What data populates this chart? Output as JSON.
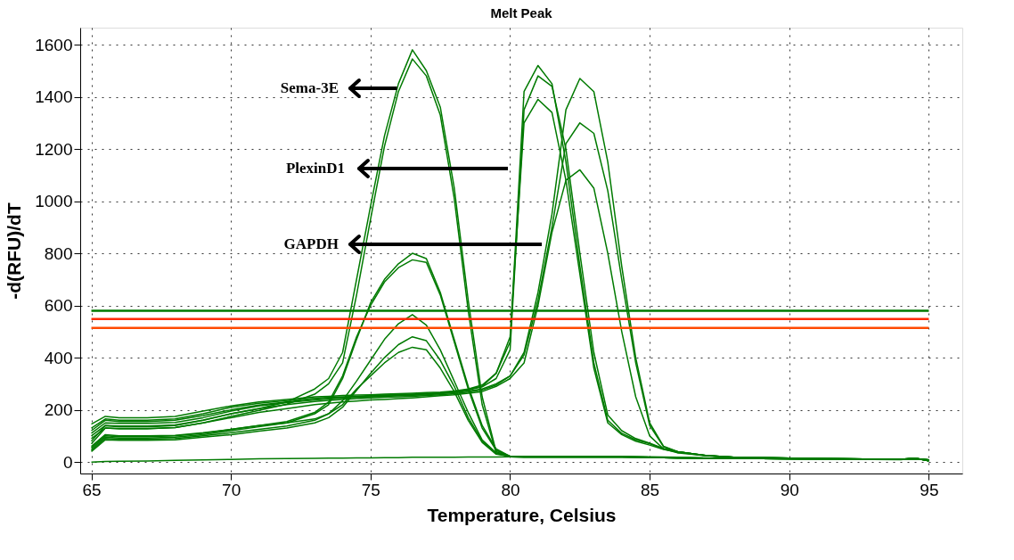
{
  "chart_data": {
    "type": "line",
    "title": "Melt Peak",
    "xlabel": "Temperature, Celsius",
    "ylabel": "-d(RFU)/dT",
    "x": [
      65,
      65.5,
      66,
      67,
      68,
      69,
      70,
      71,
      72,
      73,
      73.5,
      74,
      74.5,
      75,
      75.5,
      76,
      76.5,
      77,
      77.5,
      78,
      78.5,
      79,
      79.5,
      80,
      80.5,
      81,
      81.5,
      82,
      82.5,
      83,
      83.5,
      84,
      84.5,
      85,
      85.5,
      86,
      87,
      88,
      90,
      92,
      94,
      94.5,
      95
    ],
    "series": [
      {
        "color": "#007a00",
        "values": [
          80,
          140,
          135,
          135,
          140,
          160,
          185,
          205,
          230,
          280,
          320,
          420,
          700,
          980,
          1250,
          1450,
          1580,
          1500,
          1360,
          1050,
          620,
          250,
          40,
          20,
          18,
          18,
          18,
          18,
          18,
          18,
          18,
          18,
          18,
          17,
          17,
          16,
          15,
          14,
          12,
          11,
          10,
          12,
          8
        ]
      },
      {
        "color": "#007a00",
        "values": [
          70,
          130,
          128,
          128,
          132,
          150,
          175,
          198,
          222,
          260,
          300,
          380,
          640,
          930,
          1210,
          1420,
          1545,
          1480,
          1330,
          1010,
          580,
          220,
          35,
          20,
          18,
          18,
          18,
          18,
          18,
          18,
          18,
          18,
          18,
          17,
          17,
          16,
          15,
          14,
          12,
          11,
          10,
          12,
          8
        ]
      },
      {
        "color": "#007a00",
        "values": [
          50,
          95,
          92,
          92,
          95,
          105,
          120,
          135,
          150,
          185,
          220,
          320,
          470,
          610,
          700,
          760,
          800,
          780,
          650,
          470,
          290,
          140,
          50,
          22,
          20,
          20,
          20,
          20,
          20,
          20,
          20,
          20,
          19,
          18,
          17,
          16,
          15,
          14,
          12,
          11,
          10,
          12,
          8
        ]
      },
      {
        "color": "#007a00",
        "values": [
          55,
          100,
          97,
          97,
          100,
          110,
          125,
          140,
          155,
          190,
          230,
          330,
          480,
          600,
          690,
          745,
          775,
          765,
          640,
          460,
          280,
          130,
          45,
          22,
          20,
          20,
          20,
          20,
          20,
          20,
          20,
          20,
          19,
          18,
          17,
          16,
          15,
          14,
          12,
          11,
          10,
          12,
          8
        ]
      },
      {
        "color": "#007a00",
        "values": [
          45,
          90,
          88,
          88,
          90,
          100,
          112,
          125,
          138,
          160,
          185,
          235,
          310,
          390,
          470,
          530,
          565,
          525,
          430,
          310,
          190,
          85,
          35,
          22,
          20,
          20,
          20,
          20,
          20,
          20,
          20,
          20,
          19,
          18,
          17,
          16,
          15,
          14,
          12,
          11,
          10,
          12,
          8
        ]
      },
      {
        "color": "#007a00",
        "values": [
          40,
          85,
          83,
          83,
          85,
          95,
          105,
          118,
          130,
          150,
          170,
          210,
          275,
          340,
          400,
          450,
          480,
          465,
          390,
          290,
          170,
          80,
          32,
          22,
          20,
          20,
          20,
          20,
          20,
          20,
          20,
          20,
          19,
          18,
          17,
          16,
          15,
          14,
          12,
          11,
          10,
          12,
          8
        ]
      },
      {
        "color": "#007a00",
        "values": [
          60,
          105,
          100,
          100,
          102,
          112,
          125,
          140,
          150,
          165,
          185,
          220,
          280,
          330,
          380,
          420,
          440,
          430,
          360,
          270,
          160,
          75,
          30,
          22,
          20,
          20,
          20,
          20,
          20,
          20,
          20,
          20,
          19,
          18,
          17,
          16,
          15,
          14,
          12,
          11,
          10,
          12,
          8
        ]
      },
      {
        "color": "#007a00",
        "values": [
          130,
          165,
          160,
          160,
          165,
          185,
          210,
          225,
          235,
          245,
          248,
          250,
          252,
          255,
          257,
          258,
          260,
          262,
          265,
          270,
          278,
          290,
          340,
          460,
          1420,
          1520,
          1450,
          1150,
          750,
          380,
          160,
          110,
          85,
          70,
          50,
          40,
          25,
          18,
          15,
          12,
          10,
          15,
          5
        ]
      },
      {
        "color": "#007a00",
        "values": [
          145,
          175,
          170,
          170,
          175,
          195,
          215,
          230,
          240,
          250,
          252,
          255,
          257,
          258,
          260,
          262,
          264,
          266,
          268,
          272,
          280,
          295,
          340,
          480,
          1300,
          1390,
          1340,
          1080,
          720,
          360,
          150,
          105,
          80,
          65,
          48,
          38,
          24,
          18,
          15,
          12,
          10,
          15,
          5
        ]
      },
      {
        "color": "#007a00",
        "values": [
          120,
          160,
          155,
          155,
          160,
          178,
          200,
          218,
          230,
          240,
          244,
          247,
          250,
          252,
          255,
          256,
          258,
          260,
          263,
          268,
          276,
          288,
          320,
          430,
          1350,
          1480,
          1440,
          1200,
          800,
          420,
          180,
          120,
          90,
          72,
          52,
          40,
          25,
          18,
          15,
          12,
          10,
          15,
          5
        ]
      },
      {
        "color": "#007a00",
        "values": [
          110,
          150,
          148,
          148,
          152,
          170,
          195,
          215,
          228,
          238,
          242,
          245,
          248,
          250,
          252,
          254,
          256,
          258,
          262,
          266,
          272,
          280,
          300,
          330,
          420,
          650,
          950,
          1350,
          1470,
          1420,
          1150,
          750,
          400,
          150,
          60,
          40,
          25,
          18,
          15,
          12,
          10,
          15,
          5
        ]
      },
      {
        "color": "#007a00",
        "values": [
          100,
          140,
          138,
          138,
          142,
          160,
          185,
          205,
          220,
          232,
          236,
          240,
          243,
          246,
          248,
          250,
          252,
          255,
          258,
          262,
          268,
          276,
          295,
          330,
          410,
          620,
          900,
          1220,
          1300,
          1260,
          1040,
          700,
          380,
          140,
          58,
          40,
          25,
          18,
          15,
          12,
          10,
          15,
          5
        ]
      },
      {
        "color": "#007a00",
        "values": [
          90,
          130,
          128,
          128,
          132,
          150,
          170,
          190,
          205,
          220,
          225,
          230,
          234,
          238,
          240,
          243,
          246,
          250,
          254,
          258,
          264,
          270,
          290,
          320,
          380,
          600,
          880,
          1080,
          1120,
          1050,
          800,
          500,
          250,
          100,
          50,
          35,
          24,
          18,
          15,
          12,
          10,
          15,
          5
        ]
      },
      {
        "color": "#007a00",
        "values": [
          0,
          2,
          3,
          4,
          6,
          8,
          10,
          12,
          13,
          14,
          15,
          15,
          16,
          16,
          17,
          17,
          18,
          18,
          18,
          18,
          19,
          19,
          19,
          20,
          20,
          20,
          20,
          20,
          20,
          20,
          20,
          20,
          20,
          20,
          19,
          18,
          16,
          15,
          13,
          11,
          9,
          14,
          6
        ]
      }
    ],
    "xlim": [
      64.6,
      96.2
    ],
    "xticks": [
      65,
      70,
      75,
      80,
      85,
      90,
      95
    ],
    "ylim": [
      -44,
      1665
    ],
    "yticks": [
      0,
      200,
      400,
      600,
      800,
      1000,
      1200,
      1400,
      1600
    ],
    "grid": true,
    "legend": false,
    "ref_lines": [
      {
        "axis": "y",
        "value": 580,
        "color": "#007a00"
      },
      {
        "axis": "y",
        "value": 548,
        "color": "#ff2a00"
      },
      {
        "axis": "y",
        "value": 514,
        "color": "#ff4a00"
      }
    ],
    "annotations": [
      {
        "text": "Sema-3E",
        "x": 75.95,
        "y": 1433
      },
      "PlexinD1",
      "GAPDH"
    ]
  }
}
